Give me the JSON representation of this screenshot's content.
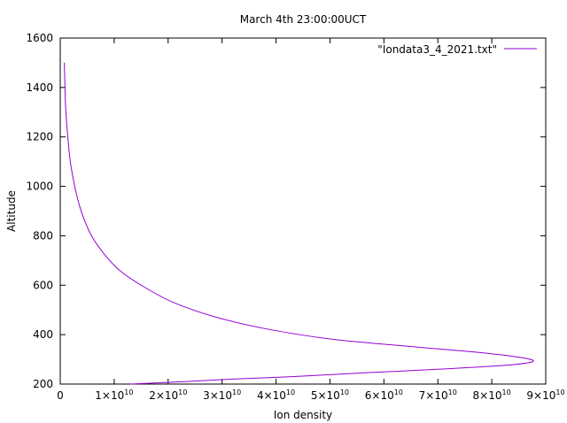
{
  "chart_data": {
    "type": "line",
    "title": "March 4th 23:00:00UCT",
    "xlabel": "Ion density",
    "ylabel": "Altitude",
    "xlim": [
      0,
      90000000000.0
    ],
    "ylim": [
      200,
      1600
    ],
    "x_ticks": [
      {
        "value": 0,
        "mantissa": "0",
        "exp": ""
      },
      {
        "value": 10000000000.0,
        "mantissa": "1×10",
        "exp": "10"
      },
      {
        "value": 20000000000.0,
        "mantissa": "2×10",
        "exp": "10"
      },
      {
        "value": 30000000000.0,
        "mantissa": "3×10",
        "exp": "10"
      },
      {
        "value": 40000000000.0,
        "mantissa": "4×10",
        "exp": "10"
      },
      {
        "value": 50000000000.0,
        "mantissa": "5×10",
        "exp": "10"
      },
      {
        "value": 60000000000.0,
        "mantissa": "6×10",
        "exp": "10"
      },
      {
        "value": 70000000000.0,
        "mantissa": "7×10",
        "exp": "10"
      },
      {
        "value": 80000000000.0,
        "mantissa": "8×10",
        "exp": "10"
      },
      {
        "value": 90000000000.0,
        "mantissa": "9×10",
        "exp": "10"
      }
    ],
    "y_ticks": [
      {
        "value": 200,
        "label": "200"
      },
      {
        "value": 400,
        "label": "400"
      },
      {
        "value": 600,
        "label": "600"
      },
      {
        "value": 800,
        "label": "800"
      },
      {
        "value": 1000,
        "label": "1000"
      },
      {
        "value": 1200,
        "label": "1200"
      },
      {
        "value": 1400,
        "label": "1400"
      },
      {
        "value": 1600,
        "label": "1600"
      }
    ],
    "grid": false,
    "legend_position": "top-right",
    "series": [
      {
        "name": "\"Iondata3_4_2021.txt\"",
        "color": "#9400d3",
        "x": [
          13000000000.0,
          23000000000.0,
          32000000000.0,
          43000000000.0,
          56000000000.0,
          70000000000.0,
          82000000000.0,
          87500000000.0,
          86000000000.0,
          79000000000.0,
          66000000000.0,
          51000000000.0,
          39000000000.0,
          29000000000.0,
          21000000000.0,
          15000000000.0,
          11000000000.0,
          8000000000.0,
          5800000000.0,
          4200000000.0,
          3100000000.0,
          2000000000.0,
          1400000000.0,
          1000000000.0,
          850000000.0,
          750000000.0
        ],
        "y": [
          200,
          210,
          220,
          230,
          245,
          260,
          275,
          290,
          305,
          325,
          350,
          380,
          420,
          470,
          530,
          600,
          660,
          730,
          800,
          880,
          960,
          1080,
          1200,
          1320,
          1420,
          1500
        ]
      }
    ]
  }
}
